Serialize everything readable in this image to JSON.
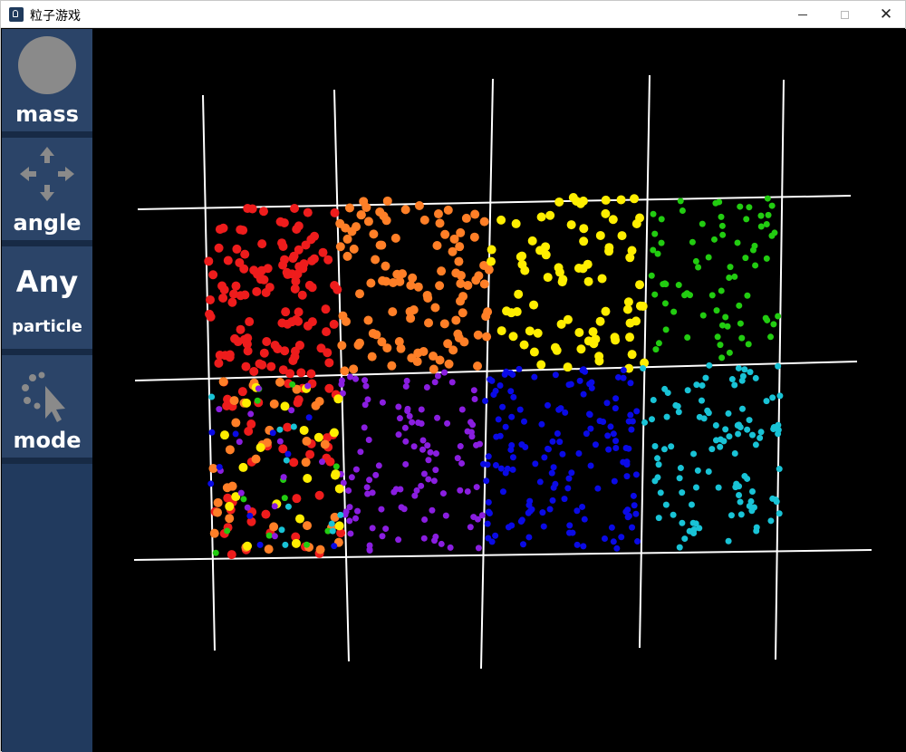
{
  "window": {
    "title": "粒子游戏",
    "icon": "app-icon"
  },
  "sidebar": {
    "tools": [
      {
        "label": "mass",
        "icon": "circle-icon"
      },
      {
        "label": "angle",
        "icon": "move-arrows-icon"
      },
      {
        "label_big": "Any",
        "label_small": "particle"
      },
      {
        "label": "mode",
        "icon": "cursor-particles-icon"
      }
    ]
  },
  "colors": {
    "red": "#ee1c1c",
    "orange": "#ff7f27",
    "yellow": "#ffee00",
    "green": "#22cc11",
    "purple": "#8a1ee0",
    "blue": "#0a0ae6",
    "cyan": "#19c3d6",
    "grid": "#ffffff",
    "sidebar_bg": "#213a5e"
  }
}
